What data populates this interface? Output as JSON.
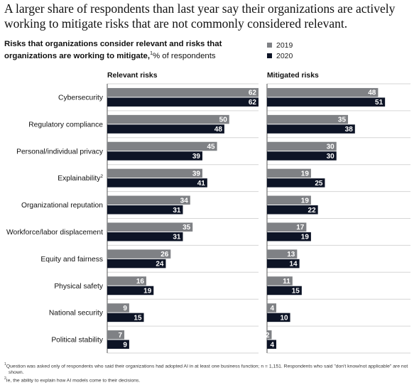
{
  "headline": "A larger share of respondents than last year say their organizations are actively working to mitigate risks that are not commonly considered relevant.",
  "subtitle": {
    "text": "Risks that organizations consider relevant and risks that organizations are working to mitigate,",
    "footnote_mark": "1",
    "unit": "% of respondents"
  },
  "legend": [
    {
      "name": "2019",
      "color": "#7f8185"
    },
    {
      "name": "2020",
      "color": "#0d1426"
    }
  ],
  "footnotes": [
    {
      "mark": "1",
      "text": "Question was asked only of respondents who said their organizations had adopted AI in at least one business function; n = 1,151. Respondents who said \"don't know/not applicable\" are not shown."
    },
    {
      "mark": "2",
      "text": "Ie, the ability to explain how AI models come to their decisions."
    }
  ],
  "chart_data": [
    {
      "type": "bar",
      "orientation": "horizontal",
      "title": "Relevant risks",
      "categories": [
        "Cybersecurity",
        "Regulatory compliance",
        "Personal/individual privacy",
        "Explainability",
        "Organizational reputation",
        "Workforce/labor displacement",
        "Equity and fairness",
        "Physical safety",
        "National security",
        "Political stability"
      ],
      "category_footnotes": {
        "Explainability": "2"
      },
      "series": [
        {
          "name": "2019",
          "color": "#7f8185",
          "values": [
            62,
            50,
            45,
            39,
            34,
            35,
            26,
            16,
            9,
            7
          ]
        },
        {
          "name": "2020",
          "color": "#0d1426",
          "values": [
            62,
            48,
            39,
            41,
            31,
            31,
            24,
            19,
            15,
            9
          ]
        }
      ],
      "xlim": [
        0,
        62
      ]
    },
    {
      "type": "bar",
      "orientation": "horizontal",
      "title": "Mitigated risks",
      "categories": [
        "Cybersecurity",
        "Regulatory compliance",
        "Personal/individual privacy",
        "Explainability",
        "Organizational reputation",
        "Workforce/labor displacement",
        "Equity and fairness",
        "Physical safety",
        "National security",
        "Political stability"
      ],
      "series": [
        {
          "name": "2019",
          "color": "#7f8185",
          "values": [
            48,
            35,
            30,
            19,
            19,
            17,
            13,
            11,
            4,
            2
          ]
        },
        {
          "name": "2020",
          "color": "#0d1426",
          "values": [
            51,
            38,
            30,
            25,
            22,
            19,
            14,
            15,
            10,
            4
          ]
        }
      ],
      "xlim": [
        0,
        62
      ]
    }
  ]
}
